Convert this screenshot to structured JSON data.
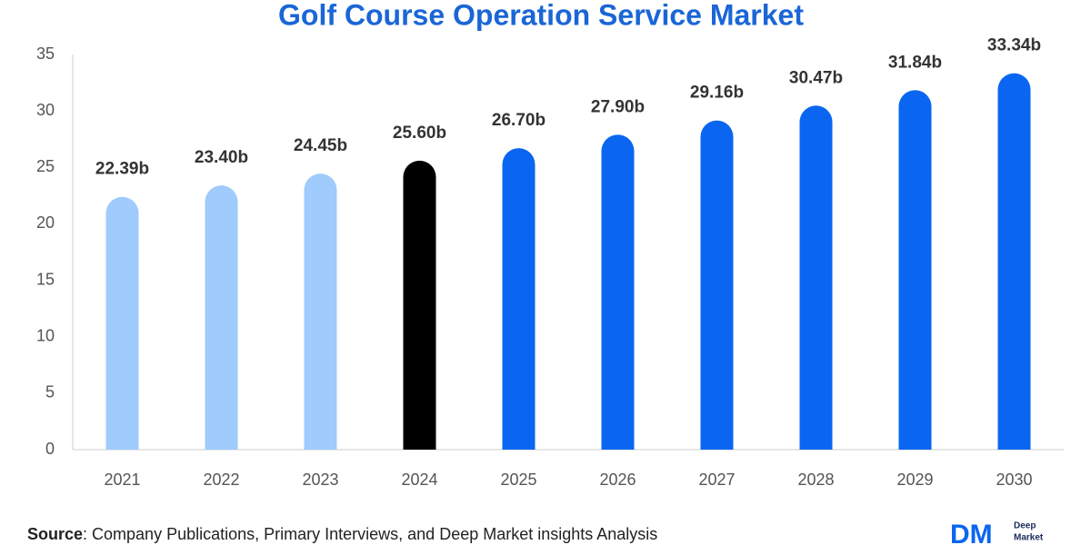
{
  "chart_data": {
    "type": "bar",
    "title": "Golf Course Operation Service Market",
    "categories": [
      "2021",
      "2022",
      "2023",
      "2024",
      "2025",
      "2026",
      "2027",
      "2028",
      "2029",
      "2030"
    ],
    "values": [
      22.39,
      23.4,
      24.45,
      25.6,
      26.7,
      27.9,
      29.16,
      30.47,
      31.84,
      33.34
    ],
    "value_labels": [
      "22.39b",
      "23.40b",
      "24.45b",
      "25.60b",
      "26.70b",
      "27.90b",
      "29.16b",
      "30.47b",
      "31.84b",
      "33.34b"
    ],
    "colors": [
      "#9fcbfd",
      "#9fcbfd",
      "#9fcbfd",
      "#000000",
      "#0a66f0",
      "#0a66f0",
      "#0a66f0",
      "#0a66f0",
      "#0a66f0",
      "#0a66f0"
    ],
    "ylim": [
      0,
      35
    ],
    "yticks": [
      0,
      5,
      10,
      15,
      20,
      25,
      30,
      35
    ],
    "grid": false,
    "source_label": "Source",
    "source_text": ": Company Publications, Primary Interviews, and Deep Market insights Analysis",
    "logo": {
      "mark": "DM",
      "name_lines": [
        "Deep",
        "Market"
      ]
    }
  }
}
